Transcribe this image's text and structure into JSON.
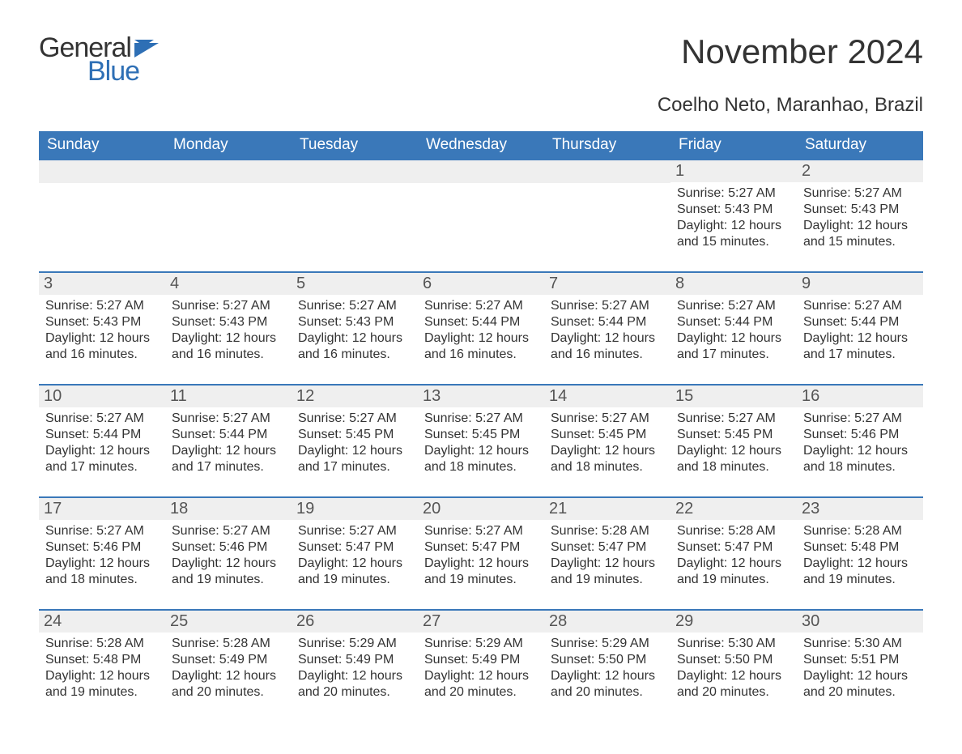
{
  "logo": {
    "text1": "General",
    "text2": "Blue",
    "icon_color": "#2e6fb5"
  },
  "month_title": "November 2024",
  "location": "Coelho Neto, Maranhao, Brazil",
  "colors": {
    "header_bg": "#3a78b9",
    "header_text": "#ffffff",
    "row_divider": "#3a78b9",
    "daynum_bg": "#efefef",
    "body_text": "#333333",
    "logo_blue": "#2e6fb5"
  },
  "typography": {
    "month_title_fontsize": 42,
    "location_fontsize": 24,
    "header_fontsize": 19,
    "daynum_fontsize": 20,
    "cell_fontsize": 16
  },
  "layout": {
    "columns": 7,
    "rows": 5,
    "first_weekday_index": 5
  },
  "weekdays": [
    "Sunday",
    "Monday",
    "Tuesday",
    "Wednesday",
    "Thursday",
    "Friday",
    "Saturday"
  ],
  "days": [
    {
      "n": 1,
      "sunrise": "5:27 AM",
      "sunset": "5:43 PM",
      "daylight": "12 hours and 15 minutes."
    },
    {
      "n": 2,
      "sunrise": "5:27 AM",
      "sunset": "5:43 PM",
      "daylight": "12 hours and 15 minutes."
    },
    {
      "n": 3,
      "sunrise": "5:27 AM",
      "sunset": "5:43 PM",
      "daylight": "12 hours and 16 minutes."
    },
    {
      "n": 4,
      "sunrise": "5:27 AM",
      "sunset": "5:43 PM",
      "daylight": "12 hours and 16 minutes."
    },
    {
      "n": 5,
      "sunrise": "5:27 AM",
      "sunset": "5:43 PM",
      "daylight": "12 hours and 16 minutes."
    },
    {
      "n": 6,
      "sunrise": "5:27 AM",
      "sunset": "5:44 PM",
      "daylight": "12 hours and 16 minutes."
    },
    {
      "n": 7,
      "sunrise": "5:27 AM",
      "sunset": "5:44 PM",
      "daylight": "12 hours and 16 minutes."
    },
    {
      "n": 8,
      "sunrise": "5:27 AM",
      "sunset": "5:44 PM",
      "daylight": "12 hours and 17 minutes."
    },
    {
      "n": 9,
      "sunrise": "5:27 AM",
      "sunset": "5:44 PM",
      "daylight": "12 hours and 17 minutes."
    },
    {
      "n": 10,
      "sunrise": "5:27 AM",
      "sunset": "5:44 PM",
      "daylight": "12 hours and 17 minutes."
    },
    {
      "n": 11,
      "sunrise": "5:27 AM",
      "sunset": "5:44 PM",
      "daylight": "12 hours and 17 minutes."
    },
    {
      "n": 12,
      "sunrise": "5:27 AM",
      "sunset": "5:45 PM",
      "daylight": "12 hours and 17 minutes."
    },
    {
      "n": 13,
      "sunrise": "5:27 AM",
      "sunset": "5:45 PM",
      "daylight": "12 hours and 18 minutes."
    },
    {
      "n": 14,
      "sunrise": "5:27 AM",
      "sunset": "5:45 PM",
      "daylight": "12 hours and 18 minutes."
    },
    {
      "n": 15,
      "sunrise": "5:27 AM",
      "sunset": "5:45 PM",
      "daylight": "12 hours and 18 minutes."
    },
    {
      "n": 16,
      "sunrise": "5:27 AM",
      "sunset": "5:46 PM",
      "daylight": "12 hours and 18 minutes."
    },
    {
      "n": 17,
      "sunrise": "5:27 AM",
      "sunset": "5:46 PM",
      "daylight": "12 hours and 18 minutes."
    },
    {
      "n": 18,
      "sunrise": "5:27 AM",
      "sunset": "5:46 PM",
      "daylight": "12 hours and 19 minutes."
    },
    {
      "n": 19,
      "sunrise": "5:27 AM",
      "sunset": "5:47 PM",
      "daylight": "12 hours and 19 minutes."
    },
    {
      "n": 20,
      "sunrise": "5:27 AM",
      "sunset": "5:47 PM",
      "daylight": "12 hours and 19 minutes."
    },
    {
      "n": 21,
      "sunrise": "5:28 AM",
      "sunset": "5:47 PM",
      "daylight": "12 hours and 19 minutes."
    },
    {
      "n": 22,
      "sunrise": "5:28 AM",
      "sunset": "5:47 PM",
      "daylight": "12 hours and 19 minutes."
    },
    {
      "n": 23,
      "sunrise": "5:28 AM",
      "sunset": "5:48 PM",
      "daylight": "12 hours and 19 minutes."
    },
    {
      "n": 24,
      "sunrise": "5:28 AM",
      "sunset": "5:48 PM",
      "daylight": "12 hours and 19 minutes."
    },
    {
      "n": 25,
      "sunrise": "5:28 AM",
      "sunset": "5:49 PM",
      "daylight": "12 hours and 20 minutes."
    },
    {
      "n": 26,
      "sunrise": "5:29 AM",
      "sunset": "5:49 PM",
      "daylight": "12 hours and 20 minutes."
    },
    {
      "n": 27,
      "sunrise": "5:29 AM",
      "sunset": "5:49 PM",
      "daylight": "12 hours and 20 minutes."
    },
    {
      "n": 28,
      "sunrise": "5:29 AM",
      "sunset": "5:50 PM",
      "daylight": "12 hours and 20 minutes."
    },
    {
      "n": 29,
      "sunrise": "5:30 AM",
      "sunset": "5:50 PM",
      "daylight": "12 hours and 20 minutes."
    },
    {
      "n": 30,
      "sunrise": "5:30 AM",
      "sunset": "5:51 PM",
      "daylight": "12 hours and 20 minutes."
    }
  ],
  "labels": {
    "sunrise": "Sunrise:",
    "sunset": "Sunset:",
    "daylight": "Daylight:"
  }
}
